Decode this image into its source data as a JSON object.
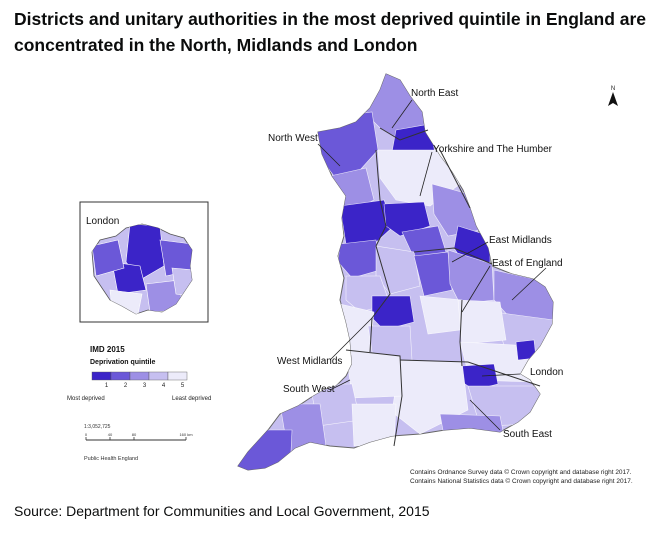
{
  "title": "Districts and unitary authorities in the most deprived quintile in England are concentrated in the North, Midlands and London",
  "source": "Source: Department for Communities and Local Government, 2015",
  "map": {
    "regions": [
      {
        "name": "North East",
        "label": "North East"
      },
      {
        "name": "North West",
        "label": "North West"
      },
      {
        "name": "Yorkshire and The Humber",
        "label": "Yorkshire and The Humber"
      },
      {
        "name": "East Midlands",
        "label": "East Midlands"
      },
      {
        "name": "East of England",
        "label": "East of England"
      },
      {
        "name": "West Midlands",
        "label": "West Midlands"
      },
      {
        "name": "London",
        "label": "London"
      },
      {
        "name": "South West",
        "label": "South West"
      },
      {
        "name": "South East",
        "label": "South East"
      }
    ],
    "inset_label": "London",
    "north_label": "N",
    "legend": {
      "title": "IMD 2015",
      "subtitle": "Deprivation quintile",
      "classes": [
        "1",
        "2",
        "3",
        "4",
        "5"
      ],
      "colors": [
        "#3b24c8",
        "#6b58d8",
        "#9d8fe5",
        "#c6bff0",
        "#ecebfa"
      ],
      "low_label": "Most deprived",
      "high_label": "Least deprived"
    },
    "scale_text": "1:3,052,725",
    "scale_ticks": [
      "0",
      "40",
      "80",
      "160 km"
    ],
    "producer": "Public Health England",
    "copyright_1": "Contains Ordnance Survey data © Crown copyright and database right 2017.",
    "copyright_2": "Contains National Statistics data © Crown copyright and database right 2017."
  }
}
